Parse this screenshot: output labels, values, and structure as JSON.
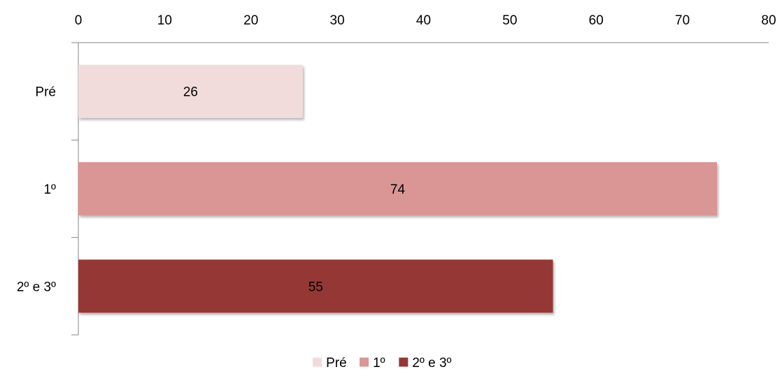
{
  "chart_data": {
    "type": "bar",
    "orientation": "horizontal",
    "categories": [
      "Pré",
      "1º",
      "2º e 3º"
    ],
    "values": [
      26,
      74,
      55
    ],
    "colors": [
      "#f2dcdb",
      "#d99694",
      "#953735"
    ],
    "data_labels": [
      "26",
      "74",
      "55"
    ],
    "xlim": [
      0,
      80
    ],
    "x_ticks": [
      0,
      10,
      20,
      30,
      40,
      50,
      60,
      70,
      80
    ],
    "x_tick_labels": [
      "0",
      "10",
      "20",
      "30",
      "40",
      "50",
      "60",
      "70",
      "80"
    ],
    "x_axis_position": "top",
    "grid": false,
    "legend": {
      "position": "bottom",
      "entries": [
        "Pré",
        "1º",
        "2º e 3º"
      ]
    },
    "title": "",
    "xlabel": "",
    "ylabel": ""
  }
}
